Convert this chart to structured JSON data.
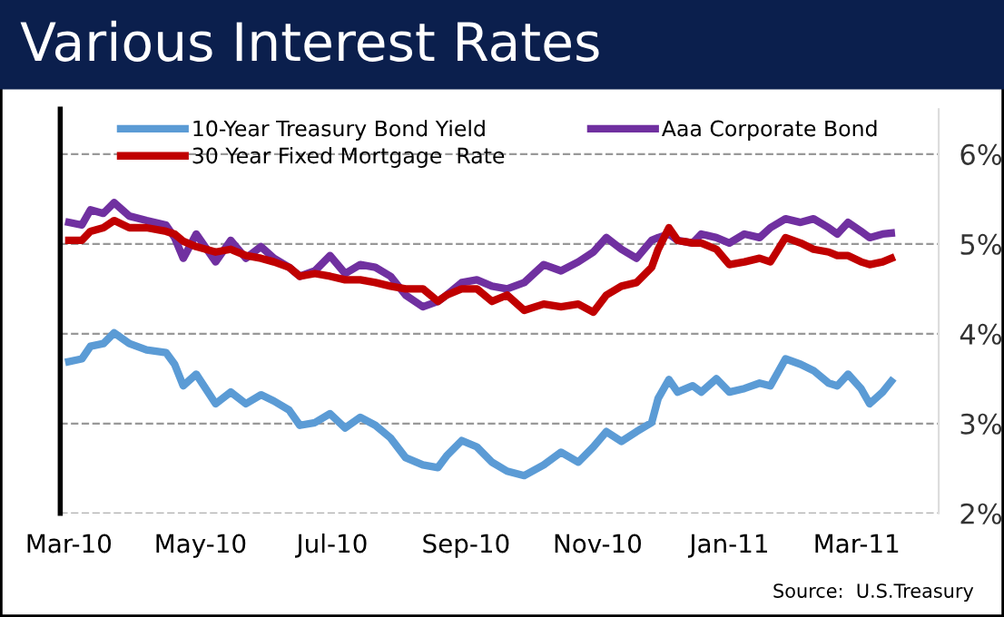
{
  "chart_data": {
    "type": "line",
    "title": "Various Interest Rates",
    "x": [
      "2010-03-01",
      "2010-03-07",
      "2010-03-11",
      "2010-03-17",
      "2010-03-22",
      "2010-03-29",
      "2010-04-06",
      "2010-04-15",
      "2010-04-19",
      "2010-04-23",
      "2010-04-29",
      "2010-05-08",
      "2010-05-15",
      "2010-05-22",
      "2010-05-29",
      "2010-06-04",
      "2010-06-11",
      "2010-06-16",
      "2010-06-23",
      "2010-06-30",
      "2010-07-07",
      "2010-07-14",
      "2010-07-21",
      "2010-07-28",
      "2010-08-04",
      "2010-08-12",
      "2010-08-19",
      "2010-08-23",
      "2010-08-30",
      "2010-09-06",
      "2010-09-13",
      "2010-09-20",
      "2010-09-28",
      "2010-10-07",
      "2010-10-15",
      "2010-10-23",
      "2010-10-30",
      "2010-11-05",
      "2010-11-12",
      "2010-11-19",
      "2010-11-26",
      "2010-11-29",
      "2010-12-04",
      "2010-12-08",
      "2010-12-15",
      "2010-12-19",
      "2010-12-26",
      "2011-01-01",
      "2011-01-08",
      "2011-01-15",
      "2011-01-20",
      "2011-01-27",
      "2011-02-03",
      "2011-02-09",
      "2011-02-16",
      "2011-02-20",
      "2011-02-25",
      "2011-03-03",
      "2011-03-07",
      "2011-03-13",
      "2011-03-17"
    ],
    "series": [
      {
        "name": "10-Year Treasury Bond Yield",
        "color": "#5b9bd5",
        "values": [
          3.69,
          3.72,
          3.86,
          3.89,
          4.01,
          3.89,
          3.82,
          3.79,
          3.66,
          3.42,
          3.55,
          3.22,
          3.35,
          3.22,
          3.32,
          3.25,
          3.15,
          2.98,
          3.01,
          3.11,
          2.95,
          3.07,
          2.98,
          2.84,
          2.62,
          2.54,
          2.51,
          2.64,
          2.81,
          2.74,
          2.57,
          2.47,
          2.42,
          2.54,
          2.68,
          2.57,
          2.74,
          2.91,
          2.8,
          2.91,
          3.01,
          3.28,
          3.49,
          3.35,
          3.42,
          3.35,
          3.5,
          3.35,
          3.39,
          3.45,
          3.42,
          3.72,
          3.66,
          3.59,
          3.45,
          3.42,
          3.55,
          3.39,
          3.22,
          3.35,
          3.47
        ]
      },
      {
        "name": "Aaa Corporate Bond",
        "color": "#7030a0",
        "values": [
          5.24,
          5.21,
          5.38,
          5.34,
          5.46,
          5.31,
          5.26,
          5.21,
          5.07,
          4.84,
          5.11,
          4.8,
          5.04,
          4.84,
          4.97,
          4.84,
          4.74,
          4.64,
          4.7,
          4.87,
          4.67,
          4.77,
          4.74,
          4.64,
          4.43,
          4.3,
          4.36,
          4.43,
          4.57,
          4.6,
          4.53,
          4.5,
          4.57,
          4.77,
          4.7,
          4.8,
          4.91,
          5.07,
          4.94,
          4.84,
          5.04,
          5.07,
          5.11,
          5.04,
          5.01,
          5.11,
          5.07,
          5.01,
          5.11,
          5.07,
          5.18,
          5.28,
          5.24,
          5.28,
          5.18,
          5.11,
          5.24,
          5.14,
          5.07,
          5.11,
          5.12
        ]
      },
      {
        "name": "30 Year Fixed Mortgage  Rate",
        "color": "#c00000",
        "values": [
          5.04,
          5.04,
          5.14,
          5.18,
          5.26,
          5.18,
          5.18,
          5.14,
          5.11,
          5.03,
          4.97,
          4.91,
          4.94,
          4.87,
          4.84,
          4.8,
          4.74,
          4.64,
          4.67,
          4.64,
          4.6,
          4.6,
          4.57,
          4.53,
          4.5,
          4.5,
          4.36,
          4.43,
          4.5,
          4.5,
          4.36,
          4.43,
          4.26,
          4.33,
          4.3,
          4.33,
          4.24,
          4.43,
          4.53,
          4.57,
          4.74,
          4.94,
          5.18,
          5.04,
          5.01,
          5.01,
          4.94,
          4.77,
          4.8,
          4.84,
          4.8,
          5.07,
          5.01,
          4.94,
          4.91,
          4.87,
          4.87,
          4.8,
          4.77,
          4.8,
          4.84
        ]
      }
    ],
    "xlim": [
      "2010-02-25",
      "2011-04-08"
    ],
    "xticks": [
      {
        "value": "2010-03-01",
        "label": "Mar-10"
      },
      {
        "value": "2010-05-01",
        "label": "May-10"
      },
      {
        "value": "2010-07-01",
        "label": "Jul-10"
      },
      {
        "value": "2010-09-01",
        "label": "Sep-10"
      },
      {
        "value": "2010-11-01",
        "label": "Nov-10"
      },
      {
        "value": "2011-01-01",
        "label": "Jan-11"
      },
      {
        "value": "2011-03-01",
        "label": "Mar-11"
      }
    ],
    "ylim": [
      2,
      6.5
    ],
    "yticks": [
      {
        "value": 2,
        "label": "2%"
      },
      {
        "value": 3,
        "label": "3%"
      },
      {
        "value": 4,
        "label": "4%"
      },
      {
        "value": 5,
        "label": "5%"
      },
      {
        "value": 6,
        "label": "6%"
      }
    ],
    "grid": "y",
    "legend": "top",
    "marker": "none",
    "line_style": "solid",
    "annotations": [
      "Source:  U.S.Treasury"
    ]
  }
}
